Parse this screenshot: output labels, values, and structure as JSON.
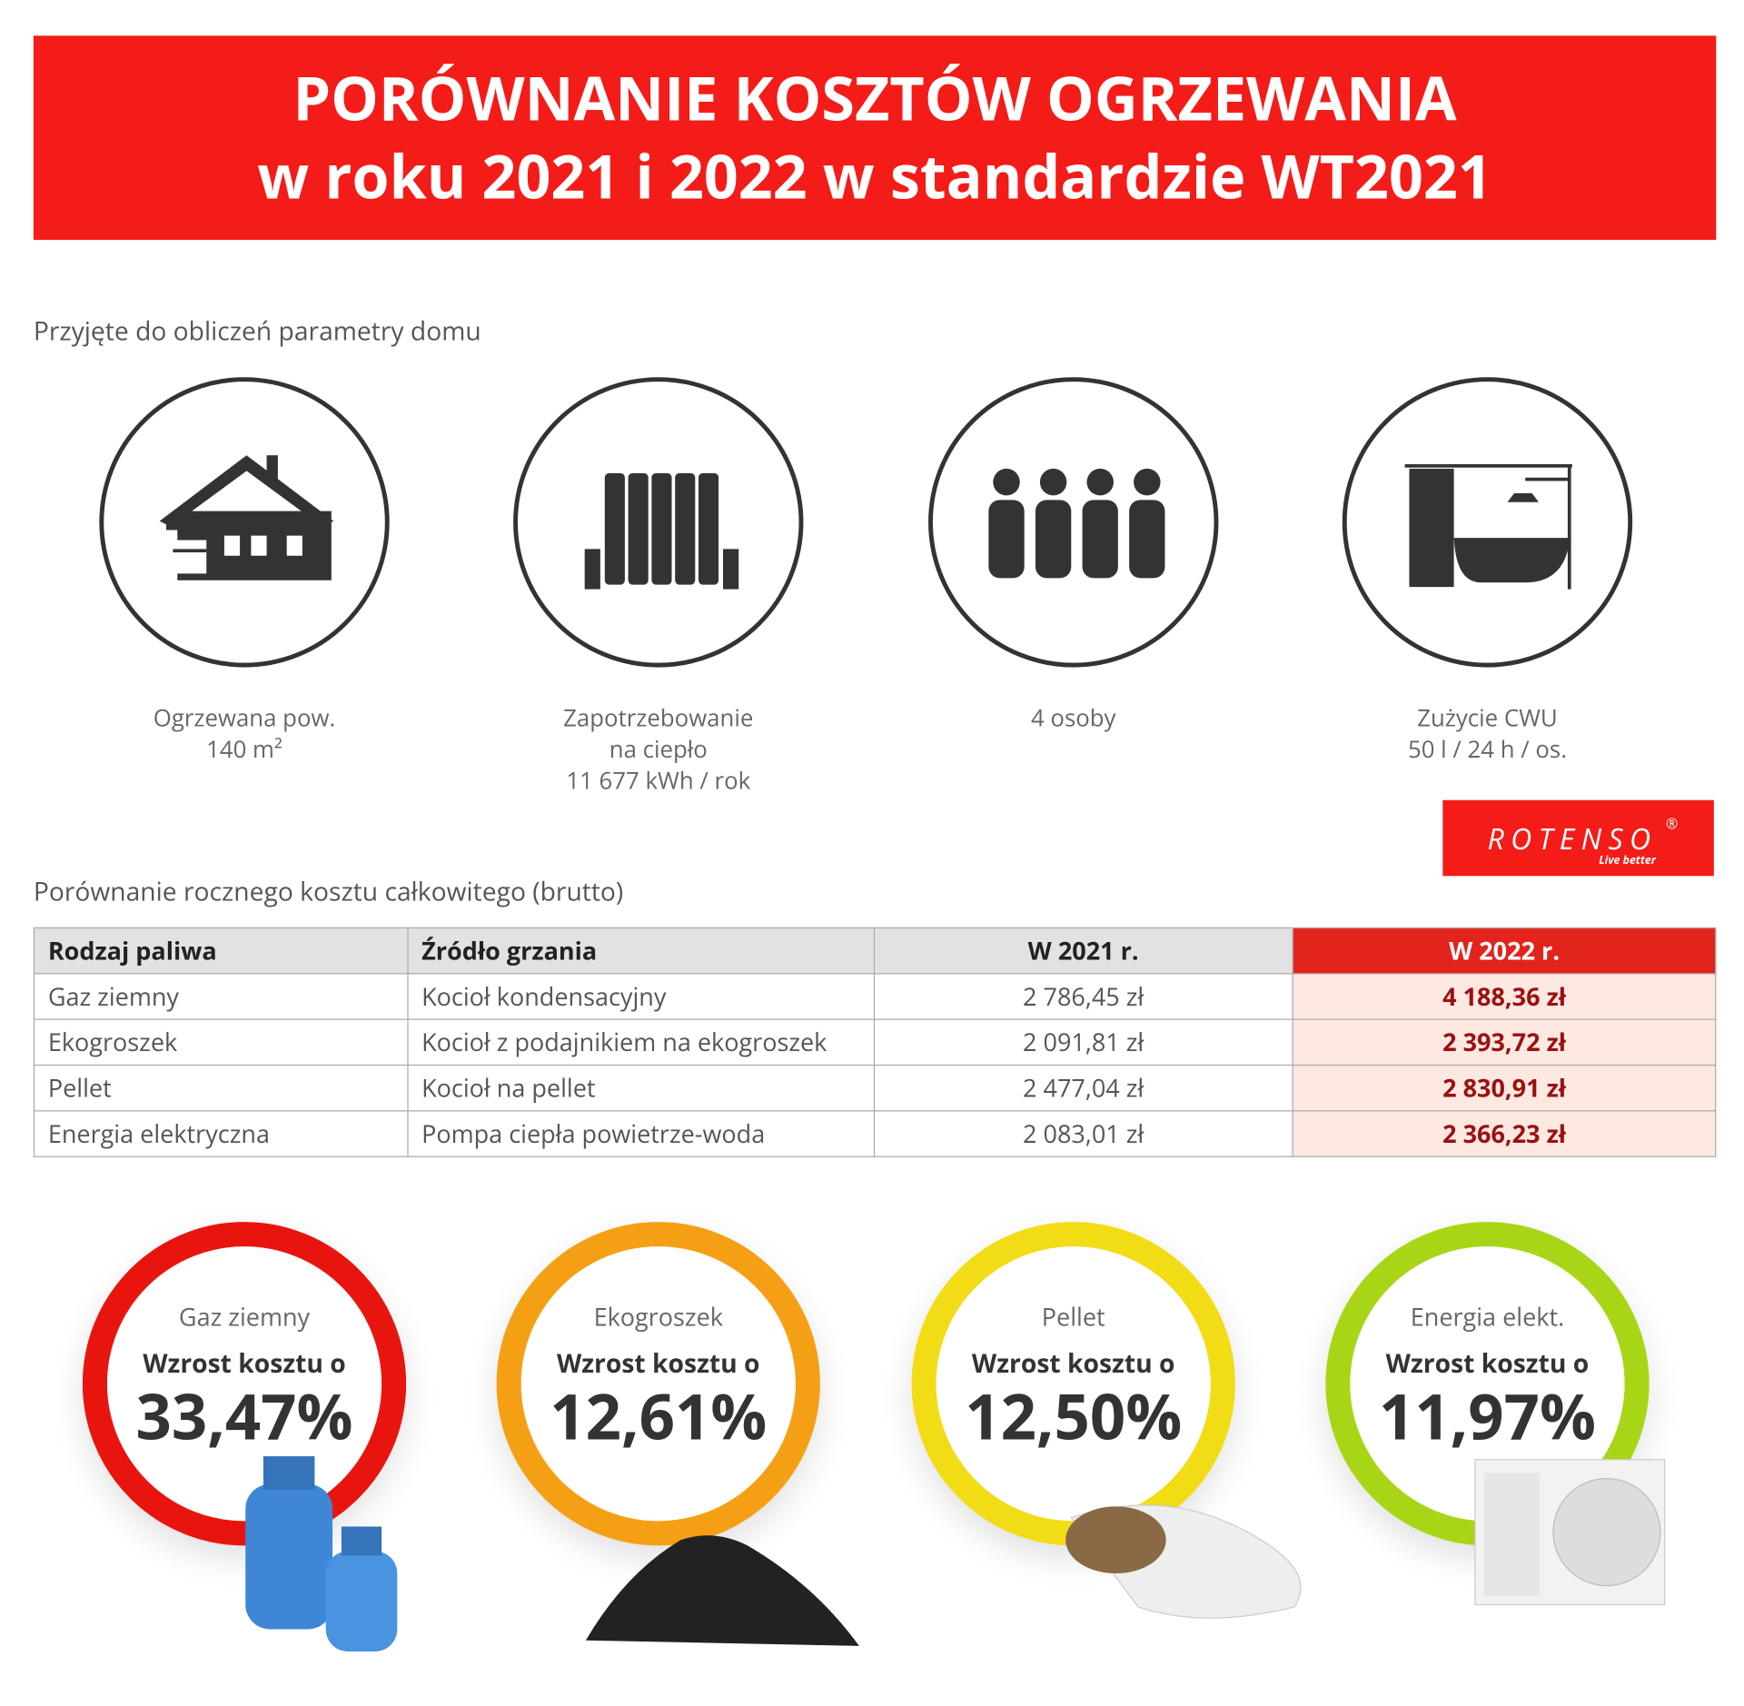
{
  "header": {
    "title_lines": [
      "PORÓWNANIE KOSZTÓW OGRZEWANIA",
      "w roku 2021 i 2022 w standardzie WT2021"
    ]
  },
  "params": {
    "heading": "Przyjęte do obliczeń parametry domu",
    "items": [
      {
        "lines": [
          "Ogrzewana pow.",
          "140 m²"
        ]
      },
      {
        "lines": [
          "Zapotrzebowanie",
          "na ciepło",
          "11 677 kWh / rok"
        ]
      },
      {
        "lines": [
          "4 osoby"
        ]
      },
      {
        "lines": [
          "Zużycie CWU",
          "50 l / 24 h / os."
        ]
      }
    ]
  },
  "logo": {
    "name": "ROTENSO",
    "mark": "®",
    "tagline": "Live better"
  },
  "table": {
    "heading": "Porównanie rocznego kosztu całkowitego (brutto)",
    "columns": [
      "Rodzaj paliwa",
      "Źródło grzania",
      "W 2021 r.",
      "W 2022 r."
    ],
    "rows": [
      [
        "Gaz ziemny",
        "Kocioł kondensacyjny",
        "2 786,45 zł",
        "4 188,36 zł"
      ],
      [
        "Ekogroszek",
        "Kocioł z podajnikiem na ekogroszek",
        "2 091,81 zł",
        "2 393,72 zł"
      ],
      [
        "Pellet",
        "Kocioł na pellet",
        "2 477,04 zł",
        "2 830,91 zł"
      ],
      [
        "Energia elektryczna",
        "Pompa ciepła powietrze-woda",
        "2 083,01 zł",
        "2 366,23 zł"
      ]
    ]
  },
  "cards": [
    {
      "name": "Gaz ziemny",
      "label": "Wzrost kosztu o",
      "value": "33,47%"
    },
    {
      "name": "Ekogroszek",
      "label": "Wzrost kosztu o",
      "value": "12,61%"
    },
    {
      "name": "Pellet",
      "label": "Wzrost kosztu o",
      "value": "12,50%"
    },
    {
      "name": "Energia elekt.",
      "label": "Wzrost kosztu o",
      "value": "11,97%"
    }
  ]
}
